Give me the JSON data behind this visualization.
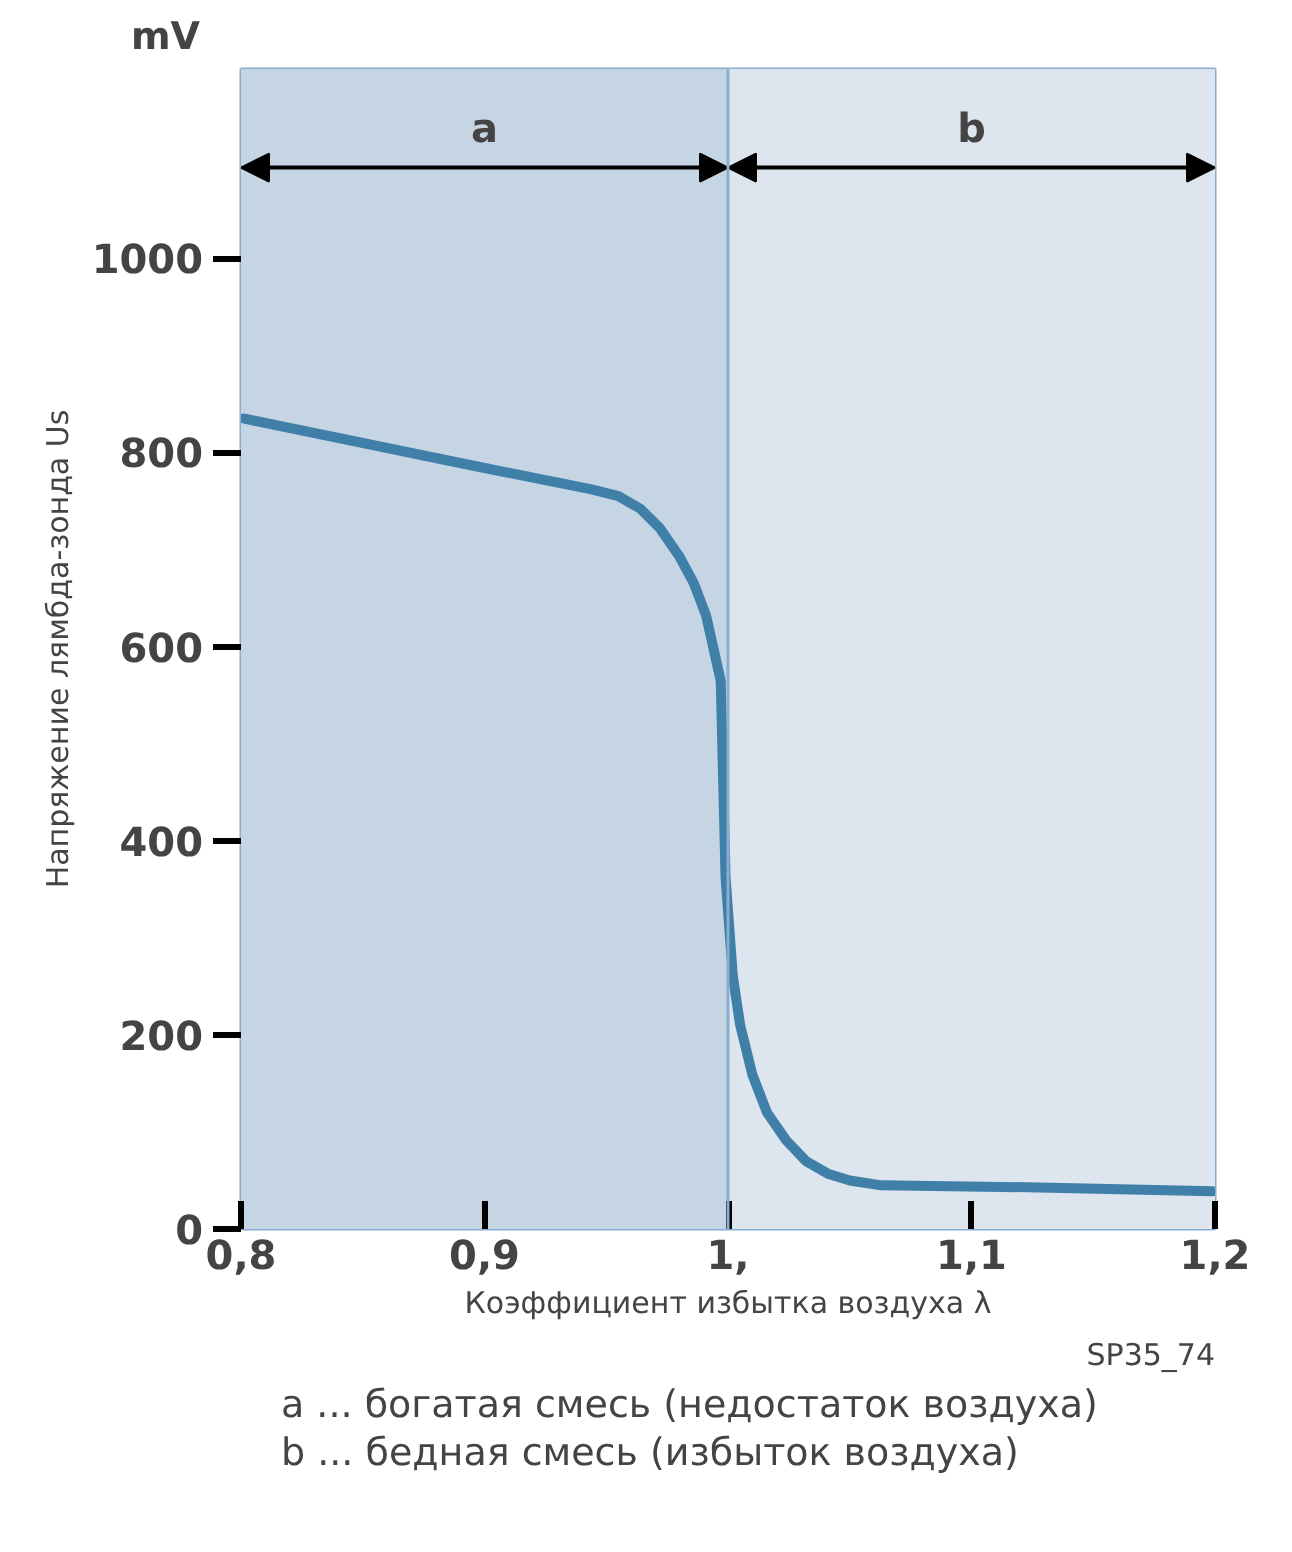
{
  "chart_data": {
    "type": "line",
    "title": "mV",
    "ylabel": "Напряжение лямбда-зонда Us",
    "xlabel": "Коэффициент избытка воздуха λ",
    "x": [
      0.801,
      0.898,
      0.944,
      0.955,
      0.964,
      0.972,
      0.98,
      0.986,
      0.991,
      0.997,
      0.998,
      0.999,
      1.002,
      1.005,
      1.01,
      1.016,
      1.024,
      1.032,
      1.041,
      1.05,
      1.063,
      1.123,
      1.199
    ],
    "series": [
      {
        "color": "#3f7fa8",
        "values": [
          835,
          785,
          762,
          755,
          742,
          722,
          693,
          665,
          632,
          565,
          463,
          362,
          260,
          210,
          159,
          120,
          91,
          70,
          57,
          50,
          45,
          43,
          39
        ]
      }
    ],
    "xlim": [
      0.8,
      1.2
    ],
    "ylim": [
      0,
      1195
    ],
    "xticks": [
      {
        "value": 0.8,
        "label": "0,8"
      },
      {
        "value": 0.9,
        "label": "0,9"
      },
      {
        "value": 1.0,
        "label": "1,"
      },
      {
        "value": 1.1,
        "label": "1,1"
      },
      {
        "value": 1.2,
        "label": "1,2"
      }
    ],
    "yticks": [
      0,
      200,
      400,
      600,
      800,
      1000
    ],
    "bands": [
      {
        "axis": "x",
        "from": 0.8,
        "to": 1.0,
        "label": "a",
        "color": "#c6d5e4"
      },
      {
        "axis": "x",
        "from": 1.0,
        "to": 1.2,
        "label": "b",
        "color": "#dde5ee"
      }
    ],
    "ref_lines": [
      {
        "axis": "x",
        "value": 1.0,
        "color": "#8aaed0"
      }
    ],
    "annotations": [
      "SP35_74",
      "a ... богатая смесь (недостаток воздуха)",
      "b ... бедная смесь (избыток воздуха)"
    ],
    "marker": "none",
    "line_style": "solid"
  }
}
